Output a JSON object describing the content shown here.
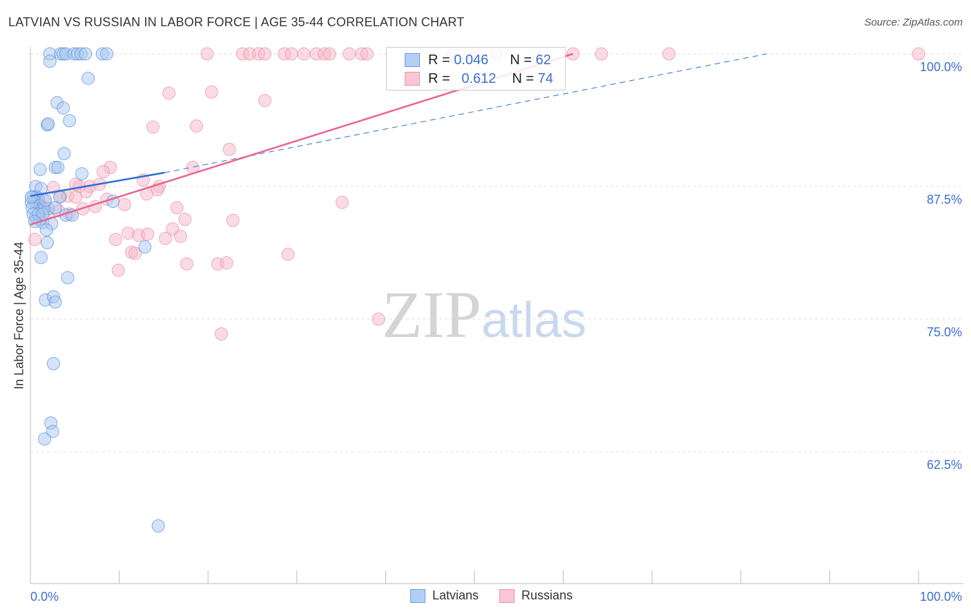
{
  "chart_data": {
    "type": "scatter",
    "title": "LATVIAN VS RUSSIAN IN LABOR FORCE | AGE 35-44 CORRELATION CHART",
    "source": "Source: ZipAtlas.com",
    "xlabel": "",
    "ylabel": "In Labor Force | Age 35-44",
    "xlim": [
      0,
      100
    ],
    "ylim": [
      50,
      100
    ],
    "x_tick_labels": [
      "0.0%",
      "100.0%"
    ],
    "y_ticks": [
      100,
      87.5,
      75,
      62.5
    ],
    "y_tick_labels": [
      "100.0%",
      "87.5%",
      "75.0%",
      "62.5%"
    ],
    "grid": true,
    "watermark": {
      "zip": "ZIP",
      "atlas": "atlas"
    },
    "legend": {
      "placement": "top-center",
      "rows": [
        {
          "r_label": "R =",
          "r": "0.046",
          "n_label": "N =",
          "n": "62"
        },
        {
          "r_label": "R =",
          "r": "0.612",
          "n_label": "N =",
          "n": "74"
        }
      ],
      "bottom": [
        "Latvians",
        "Russians"
      ]
    },
    "colors": {
      "latvians": "#5b8fd9",
      "latvians_fill": "#a9c8f0",
      "russians": "#e88aa5",
      "russians_fill": "#f6b8c9",
      "blue_line": "#2a6dd4",
      "pink_line": "#e8648e"
    },
    "series": [
      {
        "name": "Latvians",
        "trend": {
          "solid": [
            [
              0,
              86.6
            ],
            [
              15.1,
              88.8
            ]
          ],
          "dashed": [
            [
              15.1,
              88.8
            ],
            [
              82.9,
              100
            ]
          ]
        },
        "points": [
          [
            2.2,
            100
          ],
          [
            3.4,
            100
          ],
          [
            3.7,
            100
          ],
          [
            4.0,
            100
          ],
          [
            4.9,
            100
          ],
          [
            5.3,
            100
          ],
          [
            5.7,
            100
          ],
          [
            6.2,
            100
          ],
          [
            8.1,
            100
          ],
          [
            8.6,
            100
          ],
          [
            2.2,
            99.3
          ],
          [
            6.5,
            97.7
          ],
          [
            3.0,
            95.4
          ],
          [
            3.7,
            94.9
          ],
          [
            4.4,
            93.7
          ],
          [
            1.9,
            93.3
          ],
          [
            2.0,
            93.4
          ],
          [
            3.8,
            90.6
          ],
          [
            1.1,
            89.1
          ],
          [
            2.8,
            89.3
          ],
          [
            3.1,
            89.3
          ],
          [
            5.8,
            88.7
          ],
          [
            0.6,
            87.5
          ],
          [
            1.2,
            87.3
          ],
          [
            0.3,
            86.5
          ],
          [
            0.7,
            86.5
          ],
          [
            0.9,
            86.3
          ],
          [
            0.5,
            86.1
          ],
          [
            0.1,
            86.0
          ],
          [
            3.3,
            86.5
          ],
          [
            9.3,
            86.1
          ],
          [
            1.1,
            85.7
          ],
          [
            1.4,
            85.5
          ],
          [
            1.6,
            85.4
          ],
          [
            2.0,
            85.4
          ],
          [
            0.6,
            84.6
          ],
          [
            1.0,
            84.4
          ],
          [
            1.4,
            84.1
          ],
          [
            2.4,
            84.0
          ],
          [
            4.0,
            84.8
          ],
          [
            4.7,
            84.8
          ],
          [
            1.8,
            83.4
          ],
          [
            1.9,
            82.2
          ],
          [
            12.9,
            81.8
          ],
          [
            1.2,
            80.8
          ],
          [
            4.2,
            78.9
          ],
          [
            1.7,
            76.8
          ],
          [
            2.6,
            77.1
          ],
          [
            2.8,
            76.6
          ],
          [
            2.6,
            70.8
          ],
          [
            2.3,
            65.2
          ],
          [
            2.5,
            64.4
          ],
          [
            1.6,
            63.7
          ],
          [
            14.4,
            55.5
          ],
          [
            0.2,
            85.5
          ],
          [
            0.3,
            84.9
          ],
          [
            0.9,
            84.9
          ],
          [
            1.4,
            84.9
          ],
          [
            0.5,
            84.2
          ],
          [
            0.1,
            86.5
          ],
          [
            1.7,
            86.2
          ],
          [
            2.8,
            85.5
          ]
        ]
      },
      {
        "name": "Russians",
        "trend": {
          "solid": [
            [
              0,
              83.9
            ],
            [
              61.1,
              100
            ]
          ]
        },
        "points": [
          [
            19.9,
            100
          ],
          [
            23.9,
            100
          ],
          [
            24.7,
            100
          ],
          [
            25.7,
            100
          ],
          [
            26.4,
            100
          ],
          [
            28.6,
            100
          ],
          [
            29.4,
            100
          ],
          [
            30.8,
            100
          ],
          [
            32.2,
            100
          ],
          [
            33.1,
            100
          ],
          [
            33.7,
            100
          ],
          [
            35.9,
            100
          ],
          [
            37.3,
            100
          ],
          [
            37.9,
            100
          ],
          [
            47.6,
            100
          ],
          [
            50.2,
            100
          ],
          [
            52.4,
            100
          ],
          [
            61.1,
            100
          ],
          [
            64.3,
            100
          ],
          [
            71.9,
            100
          ],
          [
            100,
            100
          ],
          [
            15.6,
            96.3
          ],
          [
            20.4,
            96.4
          ],
          [
            26.4,
            95.6
          ],
          [
            13.8,
            93.1
          ],
          [
            18.7,
            93.2
          ],
          [
            22.4,
            91.0
          ],
          [
            9.0,
            89.3
          ],
          [
            8.2,
            88.9
          ],
          [
            18.3,
            89.3
          ],
          [
            12.7,
            88.1
          ],
          [
            14.5,
            87.5
          ],
          [
            14.3,
            87.2
          ],
          [
            13.1,
            86.8
          ],
          [
            5.5,
            87.5
          ],
          [
            6.7,
            87.5
          ],
          [
            7.8,
            87.7
          ],
          [
            2.6,
            87.4
          ],
          [
            3.4,
            86.6
          ],
          [
            4.2,
            86.6
          ],
          [
            5.1,
            86.5
          ],
          [
            6.3,
            87.0
          ],
          [
            8.6,
            86.3
          ],
          [
            10.6,
            85.8
          ],
          [
            7.3,
            85.6
          ],
          [
            5.9,
            85.4
          ],
          [
            16.5,
            85.5
          ],
          [
            35.1,
            86.0
          ],
          [
            17.4,
            84.4
          ],
          [
            22.8,
            84.3
          ],
          [
            11.0,
            83.1
          ],
          [
            12.2,
            82.9
          ],
          [
            13.2,
            83.0
          ],
          [
            16.0,
            83.5
          ],
          [
            15.2,
            82.6
          ],
          [
            16.9,
            82.8
          ],
          [
            9.6,
            82.5
          ],
          [
            11.4,
            81.3
          ],
          [
            11.8,
            81.2
          ],
          [
            29.0,
            81.1
          ],
          [
            9.9,
            79.6
          ],
          [
            17.6,
            80.2
          ],
          [
            21.1,
            80.2
          ],
          [
            22.1,
            80.3
          ],
          [
            21.5,
            73.6
          ],
          [
            39.2,
            75.0
          ],
          [
            0.5,
            82.5
          ],
          [
            1.2,
            85.4
          ],
          [
            2.0,
            85.0
          ],
          [
            3.2,
            85.2
          ],
          [
            0.6,
            86.1
          ],
          [
            1.6,
            86.1
          ],
          [
            4.4,
            84.9
          ],
          [
            5.1,
            87.7
          ]
        ]
      }
    ]
  }
}
